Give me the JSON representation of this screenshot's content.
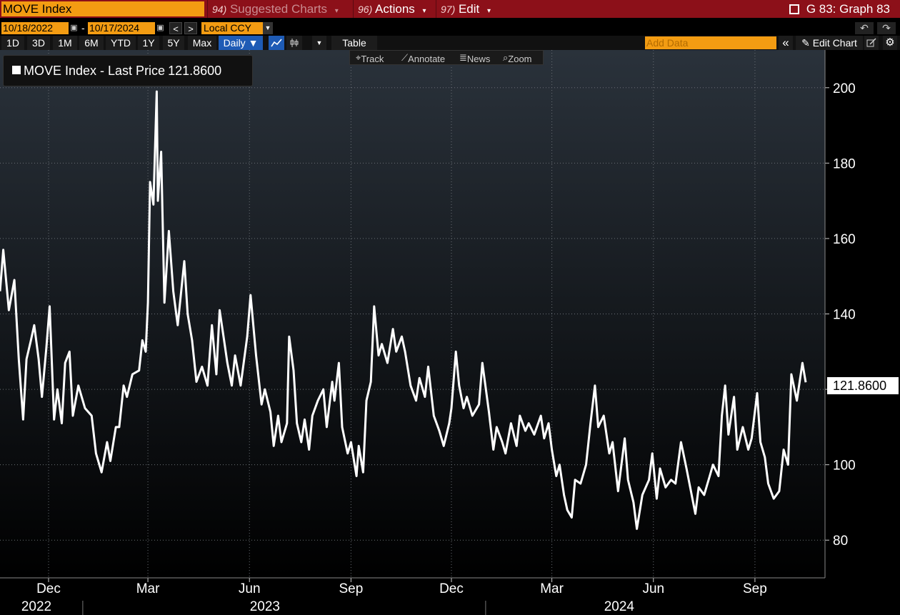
{
  "toolbar": {
    "ticker": "MOVE Index",
    "menus": [
      {
        "num": "94)",
        "label": "Suggested Charts"
      },
      {
        "num": "96)",
        "label": "Actions"
      },
      {
        "num": "97)",
        "label": "Edit"
      }
    ],
    "graph_title": "G 83: Graph 83"
  },
  "date_row": {
    "start_date": "10/18/2022",
    "separator": "-",
    "end_date": "10/17/2024",
    "currency": "Local CCY",
    "prev_icon": "<",
    "next_icon": ">",
    "undo_icon": "↶",
    "redo_icon": "↷"
  },
  "range_row": {
    "ranges": [
      "1D",
      "3D",
      "1M",
      "6M",
      "YTD",
      "1Y",
      "5Y",
      "Max"
    ],
    "frequency": "Daily ▼",
    "table_label": "Table",
    "add_data_placeholder": "Add Data",
    "collapse_icon": "«",
    "edit_chart_label": "Edit Chart",
    "edit_icon": "✎",
    "settings_icon": "⚙"
  },
  "chart_tools": {
    "track": "Track",
    "annotate": "Annotate",
    "news": "News",
    "zoom": "Zoom"
  },
  "legend": {
    "series_label": "MOVE Index - Last Price",
    "value": "121.8600"
  },
  "colors": {
    "line": "#ffffff",
    "background_top": "#2a323b",
    "background_bottom": "#000000",
    "accent_orange": "#f39c12",
    "topbar_red": "#8c1019",
    "selected_blue": "#1e5bb5"
  },
  "chart_data": {
    "type": "line",
    "title": "",
    "xlabel": "",
    "ylabel": "",
    "ylim": [
      70,
      210
    ],
    "yticks": [
      80,
      100,
      120,
      140,
      160,
      180,
      200
    ],
    "x_range": [
      "2022-10-18",
      "2024-10-17"
    ],
    "month_ticks": [
      {
        "date": "2022-12-01",
        "label": "Dec"
      },
      {
        "date": "2023-03-01",
        "label": "Mar"
      },
      {
        "date": "2023-06-01",
        "label": "Jun"
      },
      {
        "date": "2023-09-01",
        "label": "Sep"
      },
      {
        "date": "2023-12-01",
        "label": "Dec"
      },
      {
        "date": "2024-03-01",
        "label": "Mar"
      },
      {
        "date": "2024-06-01",
        "label": "Jun"
      },
      {
        "date": "2024-09-01",
        "label": "Sep"
      }
    ],
    "year_labels": [
      {
        "date": "2022-11-20",
        "label": "2022"
      },
      {
        "date": "2023-06-15",
        "label": "2023"
      },
      {
        "date": "2024-05-01",
        "label": "2024"
      }
    ],
    "year_boundaries": [
      "2023-01-01",
      "2024-01-01"
    ],
    "last_value": "121.8600",
    "series": [
      {
        "name": "MOVE Index - Last Price",
        "points": [
          [
            "2022-10-18",
            146
          ],
          [
            "2022-10-21",
            157
          ],
          [
            "2022-10-26",
            141
          ],
          [
            "2022-10-31",
            149
          ],
          [
            "2022-11-04",
            128
          ],
          [
            "2022-11-08",
            112
          ],
          [
            "2022-11-11",
            128
          ],
          [
            "2022-11-15",
            133
          ],
          [
            "2022-11-18",
            137
          ],
          [
            "2022-11-22",
            128
          ],
          [
            "2022-11-25",
            118
          ],
          [
            "2022-11-29",
            131
          ],
          [
            "2022-12-02",
            142
          ],
          [
            "2022-12-06",
            112
          ],
          [
            "2022-12-09",
            120
          ],
          [
            "2022-12-13",
            111
          ],
          [
            "2022-12-16",
            127
          ],
          [
            "2022-12-20",
            130
          ],
          [
            "2022-12-23",
            113
          ],
          [
            "2022-12-28",
            121
          ],
          [
            "2023-01-03",
            115
          ],
          [
            "2023-01-09",
            113
          ],
          [
            "2023-01-13",
            103
          ],
          [
            "2023-01-18",
            98
          ],
          [
            "2023-01-23",
            106
          ],
          [
            "2023-01-26",
            101
          ],
          [
            "2023-01-31",
            110
          ],
          [
            "2023-02-03",
            110
          ],
          [
            "2023-02-07",
            121
          ],
          [
            "2023-02-10",
            118
          ],
          [
            "2023-02-15",
            124
          ],
          [
            "2023-02-21",
            125
          ],
          [
            "2023-02-24",
            133
          ],
          [
            "2023-02-27",
            130
          ],
          [
            "2023-03-01",
            143
          ],
          [
            "2023-03-03",
            175
          ],
          [
            "2023-03-06",
            169
          ],
          [
            "2023-03-09",
            199
          ],
          [
            "2023-03-10",
            170
          ],
          [
            "2023-03-13",
            183
          ],
          [
            "2023-03-16",
            143
          ],
          [
            "2023-03-20",
            162
          ],
          [
            "2023-03-24",
            146
          ],
          [
            "2023-03-28",
            137
          ],
          [
            "2023-04-03",
            154
          ],
          [
            "2023-04-06",
            140
          ],
          [
            "2023-04-10",
            133
          ],
          [
            "2023-04-14",
            122
          ],
          [
            "2023-04-19",
            126
          ],
          [
            "2023-04-24",
            121
          ],
          [
            "2023-04-28",
            137
          ],
          [
            "2023-05-02",
            124
          ],
          [
            "2023-05-05",
            141
          ],
          [
            "2023-05-09",
            133
          ],
          [
            "2023-05-12",
            127
          ],
          [
            "2023-05-16",
            121
          ],
          [
            "2023-05-19",
            129
          ],
          [
            "2023-05-24",
            121
          ],
          [
            "2023-05-30",
            134
          ],
          [
            "2023-06-02",
            145
          ],
          [
            "2023-06-07",
            129
          ],
          [
            "2023-06-12",
            116
          ],
          [
            "2023-06-15",
            120
          ],
          [
            "2023-06-20",
            114
          ],
          [
            "2023-06-23",
            105
          ],
          [
            "2023-06-27",
            113
          ],
          [
            "2023-06-30",
            106
          ],
          [
            "2023-07-05",
            111
          ],
          [
            "2023-07-07",
            134
          ],
          [
            "2023-07-11",
            125
          ],
          [
            "2023-07-14",
            111
          ],
          [
            "2023-07-18",
            106
          ],
          [
            "2023-07-21",
            112
          ],
          [
            "2023-07-25",
            104
          ],
          [
            "2023-07-28",
            113
          ],
          [
            "2023-08-02",
            117
          ],
          [
            "2023-08-07",
            120
          ],
          [
            "2023-08-10",
            110
          ],
          [
            "2023-08-15",
            122
          ],
          [
            "2023-08-17",
            117
          ],
          [
            "2023-08-21",
            127
          ],
          [
            "2023-08-24",
            110
          ],
          [
            "2023-08-29",
            103
          ],
          [
            "2023-09-01",
            106
          ],
          [
            "2023-09-06",
            97
          ],
          [
            "2023-09-08",
            105
          ],
          [
            "2023-09-12",
            98
          ],
          [
            "2023-09-15",
            117
          ],
          [
            "2023-09-19",
            122
          ],
          [
            "2023-09-22",
            142
          ],
          [
            "2023-09-26",
            129
          ],
          [
            "2023-09-29",
            132
          ],
          [
            "2023-10-04",
            127
          ],
          [
            "2023-10-09",
            136
          ],
          [
            "2023-10-12",
            130
          ],
          [
            "2023-10-17",
            134
          ],
          [
            "2023-10-20",
            130
          ],
          [
            "2023-10-25",
            121
          ],
          [
            "2023-10-30",
            117
          ],
          [
            "2023-11-02",
            123
          ],
          [
            "2023-11-07",
            118
          ],
          [
            "2023-11-10",
            126
          ],
          [
            "2023-11-15",
            113
          ],
          [
            "2023-11-20",
            109
          ],
          [
            "2023-11-24",
            105
          ],
          [
            "2023-11-29",
            111
          ],
          [
            "2023-12-01",
            115
          ],
          [
            "2023-12-05",
            130
          ],
          [
            "2023-12-08",
            121
          ],
          [
            "2023-12-12",
            115
          ],
          [
            "2023-12-15",
            118
          ],
          [
            "2023-12-20",
            113
          ],
          [
            "2023-12-26",
            116
          ],
          [
            "2023-12-29",
            127
          ],
          [
            "2024-01-04",
            114
          ],
          [
            "2024-01-08",
            104
          ],
          [
            "2024-01-11",
            110
          ],
          [
            "2024-01-16",
            106
          ],
          [
            "2024-01-19",
            103
          ],
          [
            "2024-01-24",
            111
          ],
          [
            "2024-01-29",
            105
          ],
          [
            "2024-02-01",
            113
          ],
          [
            "2024-02-06",
            109
          ],
          [
            "2024-02-09",
            111
          ],
          [
            "2024-02-14",
            108
          ],
          [
            "2024-02-20",
            113
          ],
          [
            "2024-02-23",
            107
          ],
          [
            "2024-02-27",
            111
          ],
          [
            "2024-03-01",
            104
          ],
          [
            "2024-03-05",
            97
          ],
          [
            "2024-03-08",
            100
          ],
          [
            "2024-03-12",
            92
          ],
          [
            "2024-03-15",
            88
          ],
          [
            "2024-03-19",
            86
          ],
          [
            "2024-03-22",
            96
          ],
          [
            "2024-03-27",
            95
          ],
          [
            "2024-04-01",
            100
          ],
          [
            "2024-04-05",
            111
          ],
          [
            "2024-04-09",
            121
          ],
          [
            "2024-04-12",
            110
          ],
          [
            "2024-04-17",
            113
          ],
          [
            "2024-04-22",
            103
          ],
          [
            "2024-04-25",
            106
          ],
          [
            "2024-04-30",
            93
          ],
          [
            "2024-05-03",
            100
          ],
          [
            "2024-05-06",
            107
          ],
          [
            "2024-05-09",
            96
          ],
          [
            "2024-05-14",
            90
          ],
          [
            "2024-05-17",
            83
          ],
          [
            "2024-05-22",
            92
          ],
          [
            "2024-05-28",
            96
          ],
          [
            "2024-05-31",
            103
          ],
          [
            "2024-06-04",
            91
          ],
          [
            "2024-06-07",
            99
          ],
          [
            "2024-06-12",
            94
          ],
          [
            "2024-06-17",
            96
          ],
          [
            "2024-06-21",
            95
          ],
          [
            "2024-06-26",
            106
          ],
          [
            "2024-07-01",
            99
          ],
          [
            "2024-07-05",
            93
          ],
          [
            "2024-07-09",
            87
          ],
          [
            "2024-07-12",
            94
          ],
          [
            "2024-07-17",
            92
          ],
          [
            "2024-07-22",
            97
          ],
          [
            "2024-07-25",
            100
          ],
          [
            "2024-07-30",
            97
          ],
          [
            "2024-08-02",
            113
          ],
          [
            "2024-08-05",
            121
          ],
          [
            "2024-08-08",
            108
          ],
          [
            "2024-08-13",
            118
          ],
          [
            "2024-08-16",
            104
          ],
          [
            "2024-08-21",
            110
          ],
          [
            "2024-08-26",
            104
          ],
          [
            "2024-08-29",
            107
          ],
          [
            "2024-09-03",
            119
          ],
          [
            "2024-09-06",
            106
          ],
          [
            "2024-09-10",
            102
          ],
          [
            "2024-09-13",
            95
          ],
          [
            "2024-09-18",
            91
          ],
          [
            "2024-09-23",
            93
          ],
          [
            "2024-09-27",
            104
          ],
          [
            "2024-10-01",
            100
          ],
          [
            "2024-10-04",
            124
          ],
          [
            "2024-10-09",
            117
          ],
          [
            "2024-10-14",
            127
          ],
          [
            "2024-10-17",
            121.86
          ]
        ]
      }
    ]
  }
}
